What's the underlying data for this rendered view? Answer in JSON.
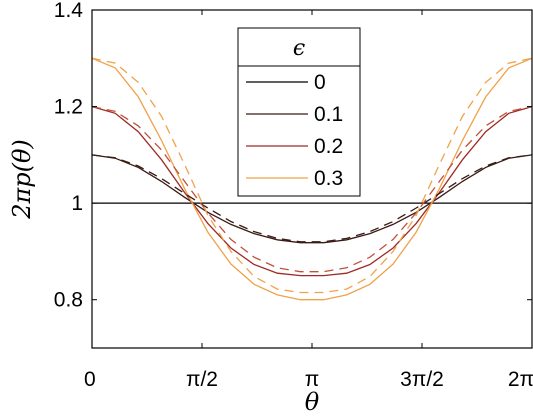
{
  "chart_data": {
    "type": "line",
    "xlabel": "θ",
    "ylabel": "2πp(θ)",
    "xlim": [
      0,
      6.2832
    ],
    "ylim": [
      0.7,
      1.4
    ],
    "x_ticks": [
      {
        "value": 0,
        "label": "0"
      },
      {
        "value": 1.5708,
        "label": "π/2"
      },
      {
        "value": 3.1416,
        "label": "π"
      },
      {
        "value": 4.7124,
        "label": "3π/2"
      },
      {
        "value": 6.2832,
        "label": "2π"
      }
    ],
    "y_ticks": [
      {
        "value": 0.8,
        "label": "0.8"
      },
      {
        "value": 1.0,
        "label": "1"
      },
      {
        "value": 1.2,
        "label": "1.2"
      },
      {
        "value": 1.4,
        "label": "1.4"
      }
    ],
    "grid": false,
    "legend": {
      "title": "ϵ",
      "placement": "top-center",
      "entries": [
        "0",
        "0.1",
        "0.2",
        "0.3"
      ]
    },
    "x": [
      0,
      0.3307,
      0.6614,
      0.9921,
      1.3228,
      1.6535,
      1.9842,
      2.3149,
      2.6456,
      2.9762,
      3.3069,
      3.6376,
      3.9683,
      4.299,
      4.6297,
      4.9604,
      5.2911,
      5.6218,
      5.9525,
      6.2832
    ],
    "series": [
      {
        "name": "0",
        "color": "#000000",
        "style": "solid",
        "values": [
          1.0,
          1.0,
          1.0,
          1.0,
          1.0,
          1.0,
          1.0,
          1.0,
          1.0,
          1.0,
          1.0,
          1.0,
          1.0,
          1.0,
          1.0,
          1.0,
          1.0,
          1.0,
          1.0,
          1.0
        ]
      },
      {
        "name": "0.1",
        "color": "#3a1a14",
        "style": "solid",
        "values": [
          1.1,
          1.093,
          1.074,
          1.045,
          1.012,
          0.981,
          0.956,
          0.937,
          0.924,
          0.918,
          0.918,
          0.924,
          0.937,
          0.956,
          0.981,
          1.012,
          1.045,
          1.074,
          1.093,
          1.1
        ]
      },
      {
        "name": "0.2",
        "color": "#9e2a26",
        "style": "solid",
        "values": [
          1.2,
          1.186,
          1.148,
          1.09,
          1.022,
          0.958,
          0.907,
          0.873,
          0.855,
          0.85,
          0.85,
          0.855,
          0.873,
          0.907,
          0.958,
          1.022,
          1.09,
          1.148,
          1.186,
          1.2
        ]
      },
      {
        "name": "0.3",
        "color": "#f0a24a",
        "style": "solid",
        "values": [
          1.3,
          1.28,
          1.22,
          1.13,
          1.03,
          0.94,
          0.874,
          0.832,
          0.81,
          0.8,
          0.8,
          0.81,
          0.832,
          0.874,
          0.94,
          1.03,
          1.13,
          1.22,
          1.28,
          1.3
        ]
      },
      {
        "name": "",
        "color": "#3a1a14",
        "style": "dashed",
        "values": [
          1.1,
          1.094,
          1.077,
          1.051,
          1.02,
          0.99,
          0.962,
          0.941,
          0.927,
          0.92,
          0.92,
          0.927,
          0.941,
          0.962,
          0.99,
          1.02,
          1.051,
          1.077,
          1.094,
          1.1
        ]
      },
      {
        "name": "",
        "color": "#c0503a",
        "style": "dashed",
        "values": [
          1.2,
          1.19,
          1.16,
          1.11,
          1.045,
          0.98,
          0.925,
          0.888,
          0.866,
          0.858,
          0.858,
          0.866,
          0.888,
          0.925,
          0.98,
          1.045,
          1.11,
          1.16,
          1.19,
          1.2
        ]
      },
      {
        "name": "",
        "color": "#f0a24a",
        "style": "dashed",
        "values": [
          1.3,
          1.29,
          1.25,
          1.18,
          1.08,
          0.975,
          0.9,
          0.848,
          0.822,
          0.815,
          0.815,
          0.822,
          0.848,
          0.9,
          0.975,
          1.08,
          1.18,
          1.25,
          1.29,
          1.3
        ]
      }
    ]
  }
}
